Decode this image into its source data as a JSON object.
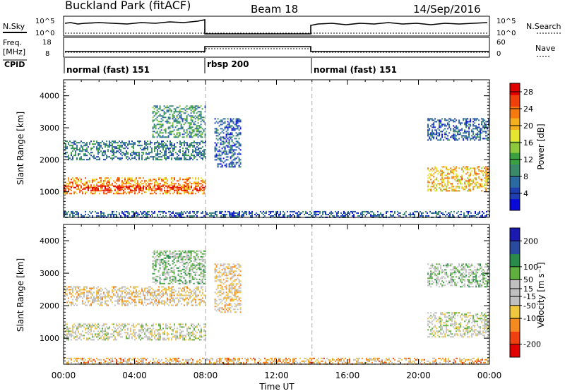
{
  "header": {
    "title": "Buckland Park (fitACF)",
    "beam": "Beam 18",
    "date": "14/Sep/2016"
  },
  "panels": {
    "nsky_label": "N.Sky",
    "nsky_ticks": [
      "10^5",
      "10^0"
    ],
    "nsearch_label": "N.Search",
    "freq_label_1": "Freq.",
    "freq_label_2": "[MHz]",
    "freq_ticks": [
      "18",
      "8"
    ],
    "nave_ticks": [
      "60",
      "0"
    ],
    "nave_label": "Nave",
    "cpid_label": "CPID",
    "cpid_segments": [
      {
        "label": "normal (fast) 151",
        "start": 0,
        "end": 8
      },
      {
        "label": "rbsp 200",
        "start": 8,
        "end": 14
      },
      {
        "label": "normal (fast) 151",
        "start": 14,
        "end": 24
      }
    ]
  },
  "colors": {
    "power_scale": [
      "#0a0ad8",
      "#1f3fb0",
      "#2a6aa0",
      "#3a8a6a",
      "#3aa040",
      "#8ec83c",
      "#e6e632",
      "#f5b020",
      "#f57a10",
      "#f0400a",
      "#e00000"
    ],
    "velocity_scale": [
      "#e00000",
      "#f04010",
      "#f58a20",
      "#f0c840",
      "#c0c0c0",
      "#c0c0c0",
      "#60b040",
      "#2a8a4a",
      "#2a4aa0",
      "#1a1ab0"
    ]
  },
  "chart_data": [
    {
      "type": "heatmap",
      "name": "power",
      "title": "",
      "xlabel": "",
      "ylabel": "Slant Range [km]",
      "colorbar_label": "Power [dB]",
      "colorbar_ticks": [
        4,
        8,
        12,
        16,
        20,
        24,
        28
      ],
      "xlim": [
        0,
        24
      ],
      "ylim": [
        200,
        4500
      ],
      "x_ticks": [
        "00:00",
        "04:00",
        "08:00",
        "12:00",
        "16:00",
        "20:00",
        "00:00"
      ],
      "y_ticks": [
        1000,
        2000,
        3000,
        4000
      ],
      "bands": [
        {
          "x": [
            0,
            8
          ],
          "range": [
            950,
            1450
          ],
          "power": 22
        },
        {
          "x": [
            0,
            8
          ],
          "range": [
            1050,
            1200
          ],
          "power": 28
        },
        {
          "x": [
            0,
            8
          ],
          "range": [
            2000,
            2600
          ],
          "power": 8
        },
        {
          "x": [
            5,
            8
          ],
          "range": [
            2700,
            3700
          ],
          "power": 10
        },
        {
          "x": [
            0,
            24
          ],
          "range": [
            200,
            400
          ],
          "power": 6
        },
        {
          "x": [
            8.5,
            10
          ],
          "range": [
            1800,
            3300
          ],
          "power": 6
        },
        {
          "x": [
            20.5,
            24
          ],
          "range": [
            1050,
            1800
          ],
          "power": 20
        },
        {
          "x": [
            20.5,
            24
          ],
          "range": [
            2600,
            3300
          ],
          "power": 6
        }
      ]
    },
    {
      "type": "heatmap",
      "name": "velocity",
      "title": "",
      "xlabel": "Time UT",
      "ylabel": "Slant Range [km]",
      "colorbar_label": "Velocity [m s⁻¹]",
      "colorbar_ticks": [
        -200,
        -100,
        -50,
        -15,
        15,
        50,
        100,
        200
      ],
      "xlim": [
        0,
        24
      ],
      "ylim": [
        200,
        4500
      ],
      "x_ticks": [
        "00:00",
        "04:00",
        "08:00",
        "12:00",
        "16:00",
        "20:00",
        "00:00"
      ],
      "y_ticks": [
        1000,
        2000,
        3000,
        4000
      ],
      "bands": [
        {
          "x": [
            0,
            8
          ],
          "range": [
            950,
            1450
          ],
          "velocity": 0
        },
        {
          "x": [
            0,
            8
          ],
          "range": [
            2000,
            2600
          ],
          "velocity": -40
        },
        {
          "x": [
            5,
            8
          ],
          "range": [
            2700,
            3700
          ],
          "velocity": 60
        },
        {
          "x": [
            0,
            24
          ],
          "range": [
            200,
            400
          ],
          "velocity": -80
        },
        {
          "x": [
            8.5,
            10
          ],
          "range": [
            1800,
            3300
          ],
          "velocity": -50
        },
        {
          "x": [
            20.5,
            24
          ],
          "range": [
            1050,
            1800
          ],
          "velocity": 0
        },
        {
          "x": [
            20.5,
            24
          ],
          "range": [
            2600,
            3300
          ],
          "velocity": 40
        }
      ]
    }
  ]
}
